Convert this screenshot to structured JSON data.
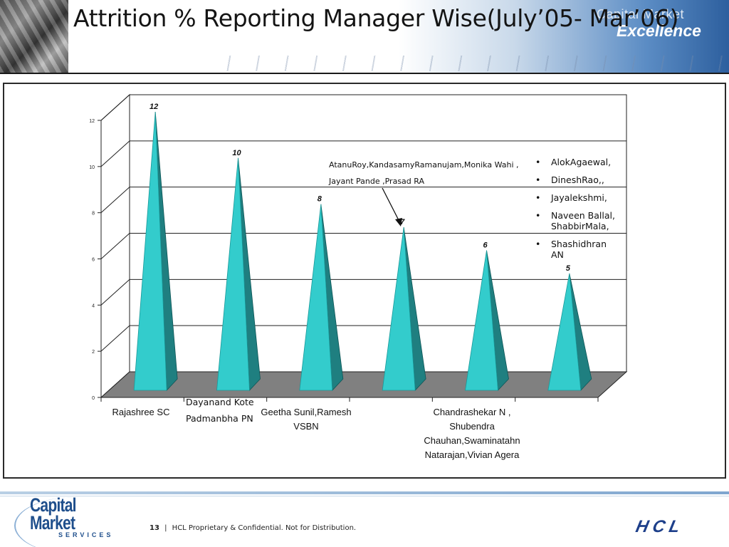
{
  "header": {
    "title": "Attrition % Reporting Manager Wise(July’05- Mar’06)",
    "brand_line1": "Capital Market",
    "brand_line2": "Excellence"
  },
  "chart_data": {
    "type": "bar",
    "style": "3d-pyramid",
    "categories": [
      "Rajashree SC",
      "Dayanand Kote Padmanbha PN",
      "Geetha Sunil,Ramesh VSBN",
      "",
      "Chandrashekar N , Shubendra Chauhan,Swaminatahn Natarajan,Vivian Agera",
      ""
    ],
    "values": [
      12,
      10,
      8,
      7,
      6,
      5
    ],
    "data_labels": [
      "12",
      "10",
      "8",
      "7",
      "6",
      "5"
    ],
    "ylim": [
      0,
      12
    ],
    "yticks": [
      "0",
      "2",
      "4",
      "6",
      "8",
      "10",
      "12"
    ],
    "grid": true,
    "legend": "none",
    "colors": {
      "pyramid_face": "#33cccc",
      "pyramid_side": "#1f7f80",
      "floor": "#808080",
      "walls": "#ffffff"
    }
  },
  "annotations": {
    "callout_line1": "AtanuRoy,KandasamyRamanujam,Monika Wahi ,",
    "callout_line2": "Jayant Pande ,Prasad RA",
    "bullets": [
      "AlokAgaewal,",
      "DineshRao,,",
      "Jayalekshmi,",
      "Naveen Ballal, ShabbirMala,",
      "Shashidhran AN"
    ]
  },
  "category_labels": {
    "cat1": "Rajashree SC",
    "cat2_line1": "Dayanand Kote",
    "cat2_line2": "Padmanbha PN",
    "cat3_line1": "Geetha Sunil,Ramesh",
    "cat3_line2": "VSBN",
    "cat5_line1": "Chandrashekar N ,",
    "cat5_line2": "Shubendra",
    "cat5_line3": "Chauhan,Swaminatahn",
    "cat5_line4": "Natarajan,Vivian Agera"
  },
  "footer": {
    "page_number": "13",
    "separator": "|",
    "notice": "HCL Proprietary & Confidential. Not for Distribution.",
    "cms_line1": "Capital",
    "cms_line2": "Market",
    "cms_line3": "SERVICES",
    "hcl_logo_text": "HCL"
  }
}
